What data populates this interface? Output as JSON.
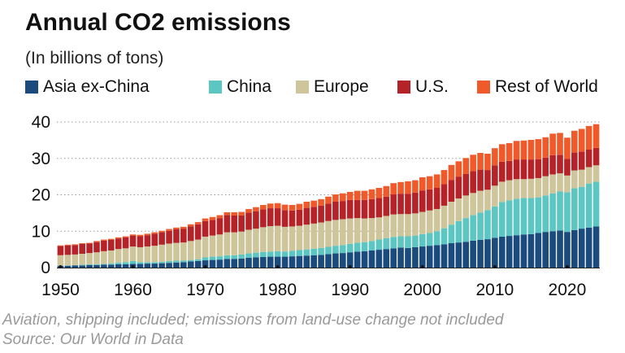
{
  "chart_data": {
    "type": "bar",
    "stacked": true,
    "title": "Annual CO2 emissions",
    "subtitle": "(In billions of tons)",
    "xlabel": "",
    "ylabel": "",
    "ylim": [
      0,
      40
    ],
    "yticks": [
      0,
      10,
      20,
      30,
      40
    ],
    "xticks": [
      1950,
      1960,
      1970,
      1980,
      1990,
      2000,
      2010,
      2020
    ],
    "grid": true,
    "legend_position": "top",
    "categories": [
      1950,
      1951,
      1952,
      1953,
      1954,
      1955,
      1956,
      1957,
      1958,
      1959,
      1960,
      1961,
      1962,
      1963,
      1964,
      1965,
      1966,
      1967,
      1968,
      1969,
      1970,
      1971,
      1972,
      1973,
      1974,
      1975,
      1976,
      1977,
      1978,
      1979,
      1980,
      1981,
      1982,
      1983,
      1984,
      1985,
      1986,
      1987,
      1988,
      1989,
      1990,
      1991,
      1992,
      1993,
      1994,
      1995,
      1996,
      1997,
      1998,
      1999,
      2000,
      2001,
      2002,
      2003,
      2004,
      2005,
      2006,
      2007,
      2008,
      2009,
      2010,
      2011,
      2012,
      2013,
      2014,
      2015,
      2016,
      2017,
      2018,
      2019,
      2020,
      2021,
      2022,
      2023,
      2024
    ],
    "series": [
      {
        "name": "Asia ex-China",
        "color": "#1b4a7d",
        "values": [
          0.5,
          0.5,
          0.6,
          0.6,
          0.7,
          0.7,
          0.8,
          0.8,
          0.9,
          0.9,
          1.0,
          1.0,
          1.1,
          1.1,
          1.2,
          1.3,
          1.4,
          1.5,
          1.7,
          1.8,
          2.0,
          2.1,
          2.2,
          2.4,
          2.4,
          2.5,
          2.7,
          2.8,
          2.9,
          3.0,
          3.0,
          3.0,
          3.1,
          3.2,
          3.3,
          3.4,
          3.5,
          3.7,
          3.9,
          4.0,
          4.2,
          4.4,
          4.5,
          4.7,
          4.9,
          5.1,
          5.3,
          5.5,
          5.4,
          5.6,
          5.8,
          6.0,
          6.2,
          6.4,
          6.7,
          6.9,
          7.1,
          7.4,
          7.6,
          7.8,
          8.2,
          8.5,
          8.7,
          8.9,
          9.1,
          9.2,
          9.5,
          9.8,
          10.0,
          10.2,
          9.8,
          10.3,
          10.7,
          11.0,
          11.3
        ]
      },
      {
        "name": "China",
        "color": "#5cc6c2",
        "values": [
          0.1,
          0.1,
          0.1,
          0.2,
          0.2,
          0.2,
          0.2,
          0.3,
          0.5,
          0.6,
          0.8,
          0.5,
          0.4,
          0.4,
          0.4,
          0.5,
          0.5,
          0.4,
          0.4,
          0.5,
          0.8,
          0.9,
          0.9,
          1.0,
          1.0,
          1.1,
          1.2,
          1.3,
          1.4,
          1.4,
          1.5,
          1.4,
          1.5,
          1.6,
          1.7,
          1.8,
          1.9,
          2.0,
          2.1,
          2.2,
          2.3,
          2.4,
          2.5,
          2.6,
          2.8,
          3.0,
          3.1,
          3.1,
          3.2,
          3.2,
          3.4,
          3.5,
          3.8,
          4.4,
          5.1,
          5.9,
          6.5,
          7.0,
          7.5,
          8.0,
          8.6,
          9.5,
          9.8,
          10.0,
          10.0,
          9.9,
          9.8,
          10.0,
          10.4,
          10.7,
          10.9,
          11.5,
          11.5,
          12.1,
          12.3
        ]
      },
      {
        "name": "Europe",
        "color": "#cfc59a",
        "values": [
          2.8,
          2.9,
          2.9,
          3.0,
          3.1,
          3.3,
          3.5,
          3.6,
          3.7,
          3.8,
          4.0,
          4.1,
          4.3,
          4.5,
          4.7,
          4.8,
          4.9,
          5.0,
          5.2,
          5.4,
          5.7,
          5.8,
          6.0,
          6.3,
          6.3,
          6.3,
          6.5,
          6.6,
          6.8,
          7.0,
          7.0,
          6.8,
          6.7,
          6.7,
          6.8,
          6.9,
          7.0,
          7.1,
          7.1,
          7.1,
          7.0,
          6.8,
          6.5,
          6.3,
          6.1,
          6.1,
          6.2,
          6.1,
          6.1,
          6.1,
          6.1,
          6.2,
          6.1,
          6.2,
          6.3,
          6.2,
          6.2,
          6.1,
          6.0,
          5.6,
          5.7,
          5.6,
          5.5,
          5.4,
          5.2,
          5.3,
          5.3,
          5.3,
          5.2,
          5.0,
          4.6,
          4.9,
          4.7,
          4.5,
          4.5
        ]
      },
      {
        "name": "U.S.",
        "color": "#b52228",
        "values": [
          2.5,
          2.6,
          2.6,
          2.7,
          2.6,
          2.8,
          2.9,
          2.9,
          2.9,
          3.0,
          3.0,
          3.0,
          3.1,
          3.3,
          3.4,
          3.5,
          3.7,
          3.8,
          4.0,
          4.2,
          4.3,
          4.3,
          4.5,
          4.7,
          4.6,
          4.4,
          4.7,
          4.8,
          4.9,
          4.9,
          4.8,
          4.6,
          4.4,
          4.4,
          4.6,
          4.6,
          4.6,
          4.8,
          5.0,
          5.0,
          5.1,
          5.0,
          5.1,
          5.2,
          5.3,
          5.3,
          5.5,
          5.6,
          5.6,
          5.7,
          5.9,
          5.8,
          5.8,
          5.9,
          6.0,
          6.0,
          5.9,
          6.0,
          5.8,
          5.4,
          5.6,
          5.5,
          5.3,
          5.4,
          5.4,
          5.3,
          5.2,
          5.1,
          5.3,
          5.1,
          4.6,
          4.9,
          5.0,
          4.8,
          4.8
        ]
      },
      {
        "name": "Rest of World",
        "color": "#f05a2a",
        "values": [
          0.2,
          0.2,
          0.2,
          0.2,
          0.2,
          0.3,
          0.3,
          0.3,
          0.3,
          0.3,
          0.3,
          0.4,
          0.4,
          0.4,
          0.4,
          0.5,
          0.5,
          0.5,
          0.6,
          0.6,
          0.7,
          0.8,
          0.8,
          0.8,
          0.9,
          1.0,
          1.0,
          1.1,
          1.2,
          1.3,
          1.4,
          1.5,
          1.5,
          1.6,
          1.7,
          1.7,
          1.8,
          1.9,
          2.0,
          2.1,
          2.2,
          2.5,
          2.5,
          2.7,
          2.8,
          2.9,
          3.1,
          3.2,
          3.4,
          3.4,
          3.6,
          3.6,
          3.7,
          3.9,
          4.1,
          4.2,
          4.4,
          4.5,
          4.6,
          4.5,
          4.7,
          4.8,
          4.9,
          5.1,
          5.2,
          5.4,
          5.5,
          5.6,
          5.9,
          6.0,
          5.8,
          6.0,
          6.2,
          6.5,
          6.5
        ]
      }
    ]
  },
  "footer": {
    "note": "Aviation, shipping included; emissions from land-use change not included",
    "source": "Source: Our World in Data"
  }
}
